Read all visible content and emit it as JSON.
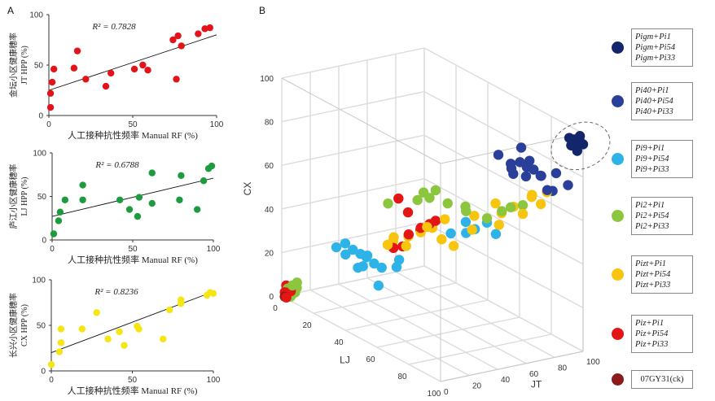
{
  "panel_labels": {
    "a": "A",
    "b": "B"
  },
  "chart_data": [
    {
      "type": "scatter",
      "panel": "A1",
      "color": "#e3131a",
      "r2": "R² = 0.7828",
      "xlabel": "人工接种抗性频率 Manual RF (%)",
      "ylabel_cn": "金坛小区健康穗率",
      "ylabel_en": "JT HPP (%)",
      "xlim": [
        0,
        100
      ],
      "ylim": [
        0,
        100
      ],
      "xticks": [
        "0",
        "50",
        "100"
      ],
      "yticks": [
        "0",
        "50",
        "100"
      ],
      "trend": [
        [
          0,
          25
        ],
        [
          100,
          80
        ]
      ],
      "points": [
        [
          1,
          8
        ],
        [
          1,
          22
        ],
        [
          2,
          33
        ],
        [
          3,
          46
        ],
        [
          15,
          47
        ],
        [
          17,
          64
        ],
        [
          22,
          36
        ],
        [
          34,
          29
        ],
        [
          37,
          42
        ],
        [
          51,
          46
        ],
        [
          56,
          50
        ],
        [
          59,
          45
        ],
        [
          74,
          75
        ],
        [
          76,
          36
        ],
        [
          77,
          79
        ],
        [
          79,
          69
        ],
        [
          89,
          81
        ],
        [
          93,
          86
        ],
        [
          96,
          87
        ]
      ]
    },
    {
      "type": "scatter",
      "panel": "A2",
      "color": "#1f9b3f",
      "r2": "R² = 0.6788",
      "xlabel": "人工接种抗性频率 Manual RF (%)",
      "ylabel_cn": "庐江小区健康穗率",
      "ylabel_en": "LJ HPP (%)",
      "xlim": [
        0,
        100
      ],
      "ylim": [
        0,
        100
      ],
      "xticks": [
        "0",
        "50",
        "100"
      ],
      "yticks": [
        "0",
        "50",
        "100"
      ],
      "trend": [
        [
          0,
          27
        ],
        [
          100,
          71
        ]
      ],
      "points": [
        [
          1,
          7
        ],
        [
          4,
          22
        ],
        [
          5,
          32
        ],
        [
          8,
          46
        ],
        [
          19,
          46
        ],
        [
          19,
          63
        ],
        [
          42,
          46
        ],
        [
          48,
          35
        ],
        [
          53,
          27
        ],
        [
          54,
          49
        ],
        [
          62,
          42
        ],
        [
          62,
          77
        ],
        [
          79,
          46
        ],
        [
          80,
          74
        ],
        [
          90,
          35
        ],
        [
          94,
          68
        ],
        [
          97,
          82
        ],
        [
          99,
          85
        ]
      ]
    },
    {
      "type": "scatter",
      "panel": "A3",
      "color": "#f5e612",
      "r2": "R² = 0.8236",
      "xlabel": "人工接种抗性频率 Manual RF (%)",
      "ylabel_cn": "长兴小区健康穗率",
      "ylabel_en": "CX HPP (%)",
      "xlim": [
        0,
        100
      ],
      "ylim": [
        0,
        100
      ],
      "xticks": [
        "0",
        "50",
        "100"
      ],
      "yticks": [
        "0",
        "50",
        "100"
      ],
      "trend": [
        [
          0,
          20
        ],
        [
          100,
          87
        ]
      ],
      "points": [
        [
          0,
          7
        ],
        [
          5,
          21
        ],
        [
          6,
          31
        ],
        [
          6,
          46
        ],
        [
          19,
          46
        ],
        [
          28,
          64
        ],
        [
          35,
          35
        ],
        [
          42,
          43
        ],
        [
          45,
          28
        ],
        [
          53,
          49
        ],
        [
          54,
          46
        ],
        [
          69,
          35
        ],
        [
          73,
          67
        ],
        [
          80,
          78
        ],
        [
          80,
          74
        ],
        [
          96,
          83
        ],
        [
          98,
          86
        ],
        [
          100,
          85
        ]
      ]
    },
    {
      "type": "scatter3d",
      "panel": "B",
      "axes": {
        "x": "LJ",
        "y": "JT",
        "z": "CX"
      },
      "range": [
        0,
        100
      ],
      "ticks": [
        "0",
        "20",
        "40",
        "60",
        "80",
        "100"
      ],
      "groups": [
        {
          "color": "#13266b",
          "label": [
            "Pigm+Pi1",
            "Pigm+Pi54",
            "Pigm+Pi33"
          ],
          "points": [
            [
              97,
              97,
              95
            ],
            [
              99,
              99,
              96
            ],
            [
              95,
              98,
              94
            ],
            [
              98,
              96,
              97
            ],
            [
              96,
              99,
              93
            ],
            [
              100,
              100,
              95
            ],
            [
              94,
              97,
              96
            ],
            [
              97,
              95,
              94
            ],
            [
              99,
              97,
              92
            ],
            [
              98,
              100,
              98
            ]
          ]
        },
        {
          "color": "#2a3f99",
          "label": [
            "Pi40+Pi1",
            "Pi40+Pi54",
            "Pi40+Pi33"
          ],
          "points": [
            [
              80,
              78,
              82
            ],
            [
              85,
              82,
              80
            ],
            [
              78,
              85,
              78
            ],
            [
              82,
              80,
              76
            ],
            [
              88,
              84,
              78
            ],
            [
              76,
              76,
              80
            ],
            [
              84,
              88,
              76
            ],
            [
              90,
              86,
              72
            ],
            [
              79,
              80,
              88
            ],
            [
              86,
              78,
              85
            ],
            [
              92,
              90,
              80
            ],
            [
              74,
              80,
              74
            ],
            [
              95,
              95,
              75
            ],
            [
              88,
              92,
              70
            ],
            [
              80,
              72,
              80
            ],
            [
              70,
              74,
              82
            ]
          ]
        },
        {
          "color": "#2eb3e8",
          "label": [
            "Pi9+Pi1",
            "Pi9+Pi54",
            "Pi9+Pi33"
          ],
          "points": [
            [
              22,
              20,
              30
            ],
            [
              25,
              22,
              28
            ],
            [
              28,
              24,
              27
            ],
            [
              30,
              26,
              26
            ],
            [
              27,
              30,
              25
            ],
            [
              33,
              28,
              24
            ],
            [
              24,
              18,
              26
            ],
            [
              30,
              20,
              22
            ],
            [
              36,
              30,
              23
            ],
            [
              20,
              16,
              28
            ],
            [
              26,
              28,
              20
            ],
            [
              40,
              36,
              24
            ],
            [
              62,
              60,
              50
            ],
            [
              66,
              62,
              48
            ],
            [
              70,
              66,
              52
            ],
            [
              64,
              58,
              46
            ],
            [
              72,
              70,
              47
            ],
            [
              58,
              54,
              44
            ],
            [
              38,
              40,
              26
            ],
            [
              34,
              30,
              14
            ]
          ]
        },
        {
          "color": "#8cc63e",
          "label": [
            "Pi2+Pi1",
            "Pi2+Pi54",
            "Pi2+Pi33"
          ],
          "points": [
            [
              2,
              2,
              4
            ],
            [
              4,
              3,
              6
            ],
            [
              5,
              5,
              5
            ],
            [
              3,
              6,
              2
            ],
            [
              6,
              4,
              8
            ],
            [
              2,
              4,
              0
            ],
            [
              48,
              46,
              60
            ],
            [
              50,
              48,
              58
            ],
            [
              52,
              50,
              62
            ],
            [
              46,
              44,
              56
            ],
            [
              60,
              62,
              56
            ],
            [
              74,
              72,
              58
            ],
            [
              76,
              76,
              60
            ],
            [
              80,
              80,
              62
            ],
            [
              70,
              66,
              54
            ],
            [
              64,
              58,
              56
            ],
            [
              40,
              30,
              54
            ],
            [
              56,
              54,
              57
            ]
          ]
        },
        {
          "color": "#f7c40e",
          "label": [
            "Pizt+Pi1",
            "Pizt+Pi54",
            "Pizt+Pi33"
          ],
          "points": [
            [
              44,
              40,
              40
            ],
            [
              48,
              44,
              42
            ],
            [
              50,
              50,
              44
            ],
            [
              42,
              42,
              38
            ],
            [
              46,
              36,
              36
            ],
            [
              52,
              44,
              46
            ],
            [
              40,
              34,
              38
            ],
            [
              54,
              52,
              40
            ],
            [
              58,
              56,
              38
            ],
            [
              70,
              72,
              60
            ],
            [
              72,
              74,
              56
            ],
            [
              76,
              78,
              60
            ],
            [
              80,
              80,
              58
            ],
            [
              74,
              70,
              52
            ],
            [
              82,
              84,
              66
            ],
            [
              86,
              86,
              64
            ],
            [
              84,
              82,
              68
            ],
            [
              88,
              88,
              70
            ],
            [
              62,
              66,
              52
            ],
            [
              66,
              60,
              48
            ],
            [
              56,
              52,
              50
            ],
            [
              36,
              38,
              34
            ],
            [
              38,
              32,
              34
            ]
          ]
        },
        {
          "color": "#e31515",
          "label": [
            "Piz+Pi1",
            "Piz+Pi54",
            "Piz+Pi33"
          ],
          "points": [
            [
              40,
              44,
              48
            ],
            [
              44,
              40,
              40
            ],
            [
              46,
              46,
              42
            ],
            [
              42,
              38,
              34
            ],
            [
              50,
              48,
              46
            ],
            [
              38,
              36,
              32
            ],
            [
              48,
              44,
              44
            ],
            [
              52,
              50,
              48
            ],
            [
              34,
              44,
              52
            ],
            [
              1,
              1,
              2
            ],
            [
              2,
              1,
              0
            ],
            [
              1,
              2,
              5
            ],
            [
              3,
              3,
              3
            ]
          ]
        },
        {
          "color": "#8b1a1a",
          "label": [
            "07GY31(ck)"
          ],
          "points": [
            [
              1,
              1,
              0
            ]
          ]
        }
      ]
    }
  ]
}
